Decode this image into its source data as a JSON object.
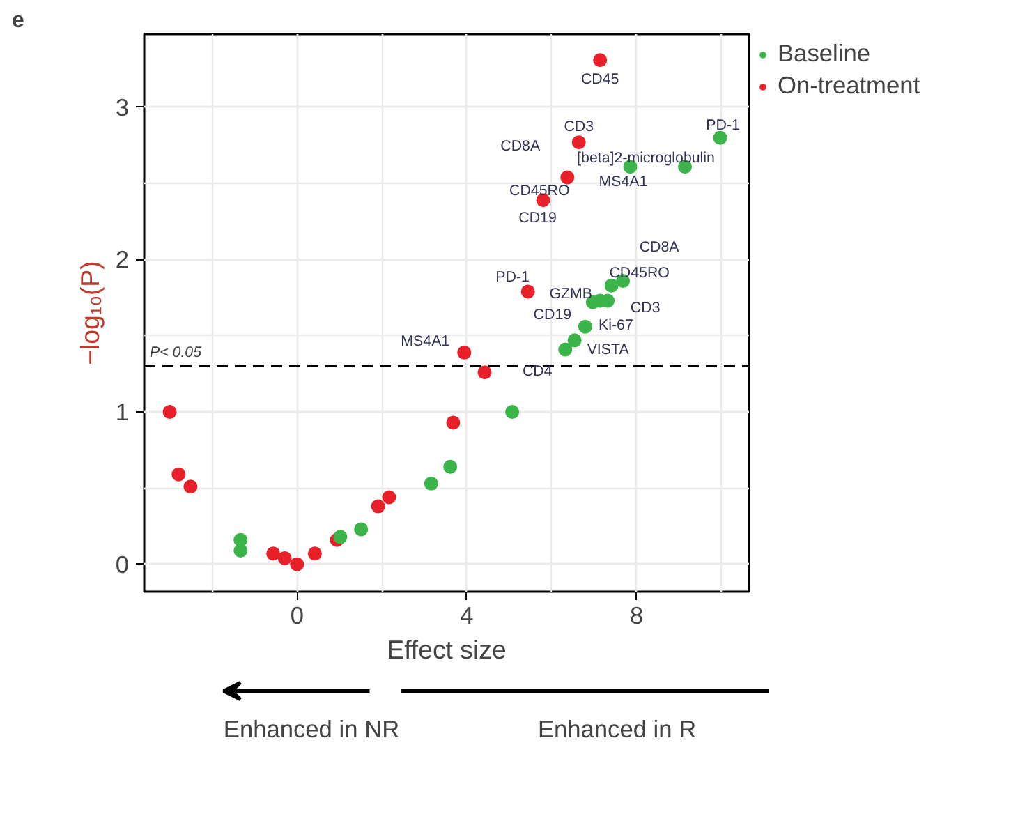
{
  "chart_data": {
    "type": "scatter",
    "title": "e",
    "xlabel": "Effect size",
    "ylabel": "−log₁₀(P)",
    "xlim": [
      -3.6,
      10.65
    ],
    "ylim": [
      -0.18,
      3.48
    ],
    "xticks": [
      0,
      4,
      8
    ],
    "yticks": [
      0,
      1,
      2,
      3
    ],
    "grid": true,
    "legend": "right",
    "marker": "circle",
    "series": [
      {
        "name": "Baseline",
        "color": "#3bb44a",
        "x": [
          9.97,
          9.14,
          7.85,
          7.68,
          7.41,
          7.32,
          7.14,
          6.97,
          6.79,
          6.54,
          6.32,
          5.07,
          3.61,
          3.16,
          1.51,
          1.02,
          -1.33,
          -1.33
        ],
        "values": [
          2.8,
          2.61,
          2.61,
          1.86,
          1.83,
          1.73,
          1.73,
          1.72,
          1.56,
          1.47,
          1.41,
          1.0,
          0.64,
          0.53,
          0.23,
          0.18,
          0.16,
          0.09
        ]
      },
      {
        "name": "On-treatment",
        "color": "#e8202a",
        "x": [
          7.14,
          6.64,
          6.37,
          5.8,
          5.44,
          3.94,
          4.42,
          3.68,
          2.17,
          1.91,
          0.94,
          0.42,
          0.0,
          -0.29,
          -0.56,
          -2.51,
          -2.79,
          -3.0
        ],
        "values": [
          3.31,
          2.77,
          2.54,
          2.39,
          1.79,
          1.39,
          1.26,
          0.93,
          0.44,
          0.38,
          0.16,
          0.07,
          0.0,
          0.04,
          0.07,
          0.51,
          0.59,
          1.0
        ]
      }
    ],
    "ref_lines": [
      {
        "axis": "y",
        "value": 1.3,
        "label": "P< 0.05",
        "color": "#000000",
        "line_style": "dashed"
      }
    ],
    "annotations": [
      {
        "text": "CD45",
        "x": 7.14,
        "y": 3.31
      },
      {
        "text": "CD3",
        "x": 6.64,
        "y": 2.77
      },
      {
        "text": "CD8A",
        "x": 6.64,
        "y": 2.77
      },
      {
        "text": "[beta]2-microglobulin",
        "x": 9.14,
        "y": 2.61
      },
      {
        "text": "MS4A1",
        "x": 7.85,
        "y": 2.61
      },
      {
        "text": "PD-1",
        "x": 9.97,
        "y": 2.8
      },
      {
        "text": "CD45RO",
        "x": 6.37,
        "y": 2.54
      },
      {
        "text": "CD19",
        "x": 5.8,
        "y": 2.39
      },
      {
        "text": "PD-1",
        "x": 5.44,
        "y": 1.79
      },
      {
        "text": "MS4A1",
        "x": 3.94,
        "y": 1.39
      },
      {
        "text": "CD8A",
        "x": 7.68,
        "y": 1.86
      },
      {
        "text": "CD45RO",
        "x": 7.41,
        "y": 1.83
      },
      {
        "text": "GZMB",
        "x": 7.14,
        "y": 1.73
      },
      {
        "text": "CD19",
        "x": 6.97,
        "y": 1.72
      },
      {
        "text": "CD3",
        "x": 7.32,
        "y": 1.73
      },
      {
        "text": "Ki-67",
        "x": 6.79,
        "y": 1.56
      },
      {
        "text": "VISTA",
        "x": 6.54,
        "y": 1.47
      },
      {
        "text": "CD4",
        "x": 6.32,
        "y": 1.41
      },
      "Enhanced in NR",
      "Enhanced in R"
    ]
  }
}
